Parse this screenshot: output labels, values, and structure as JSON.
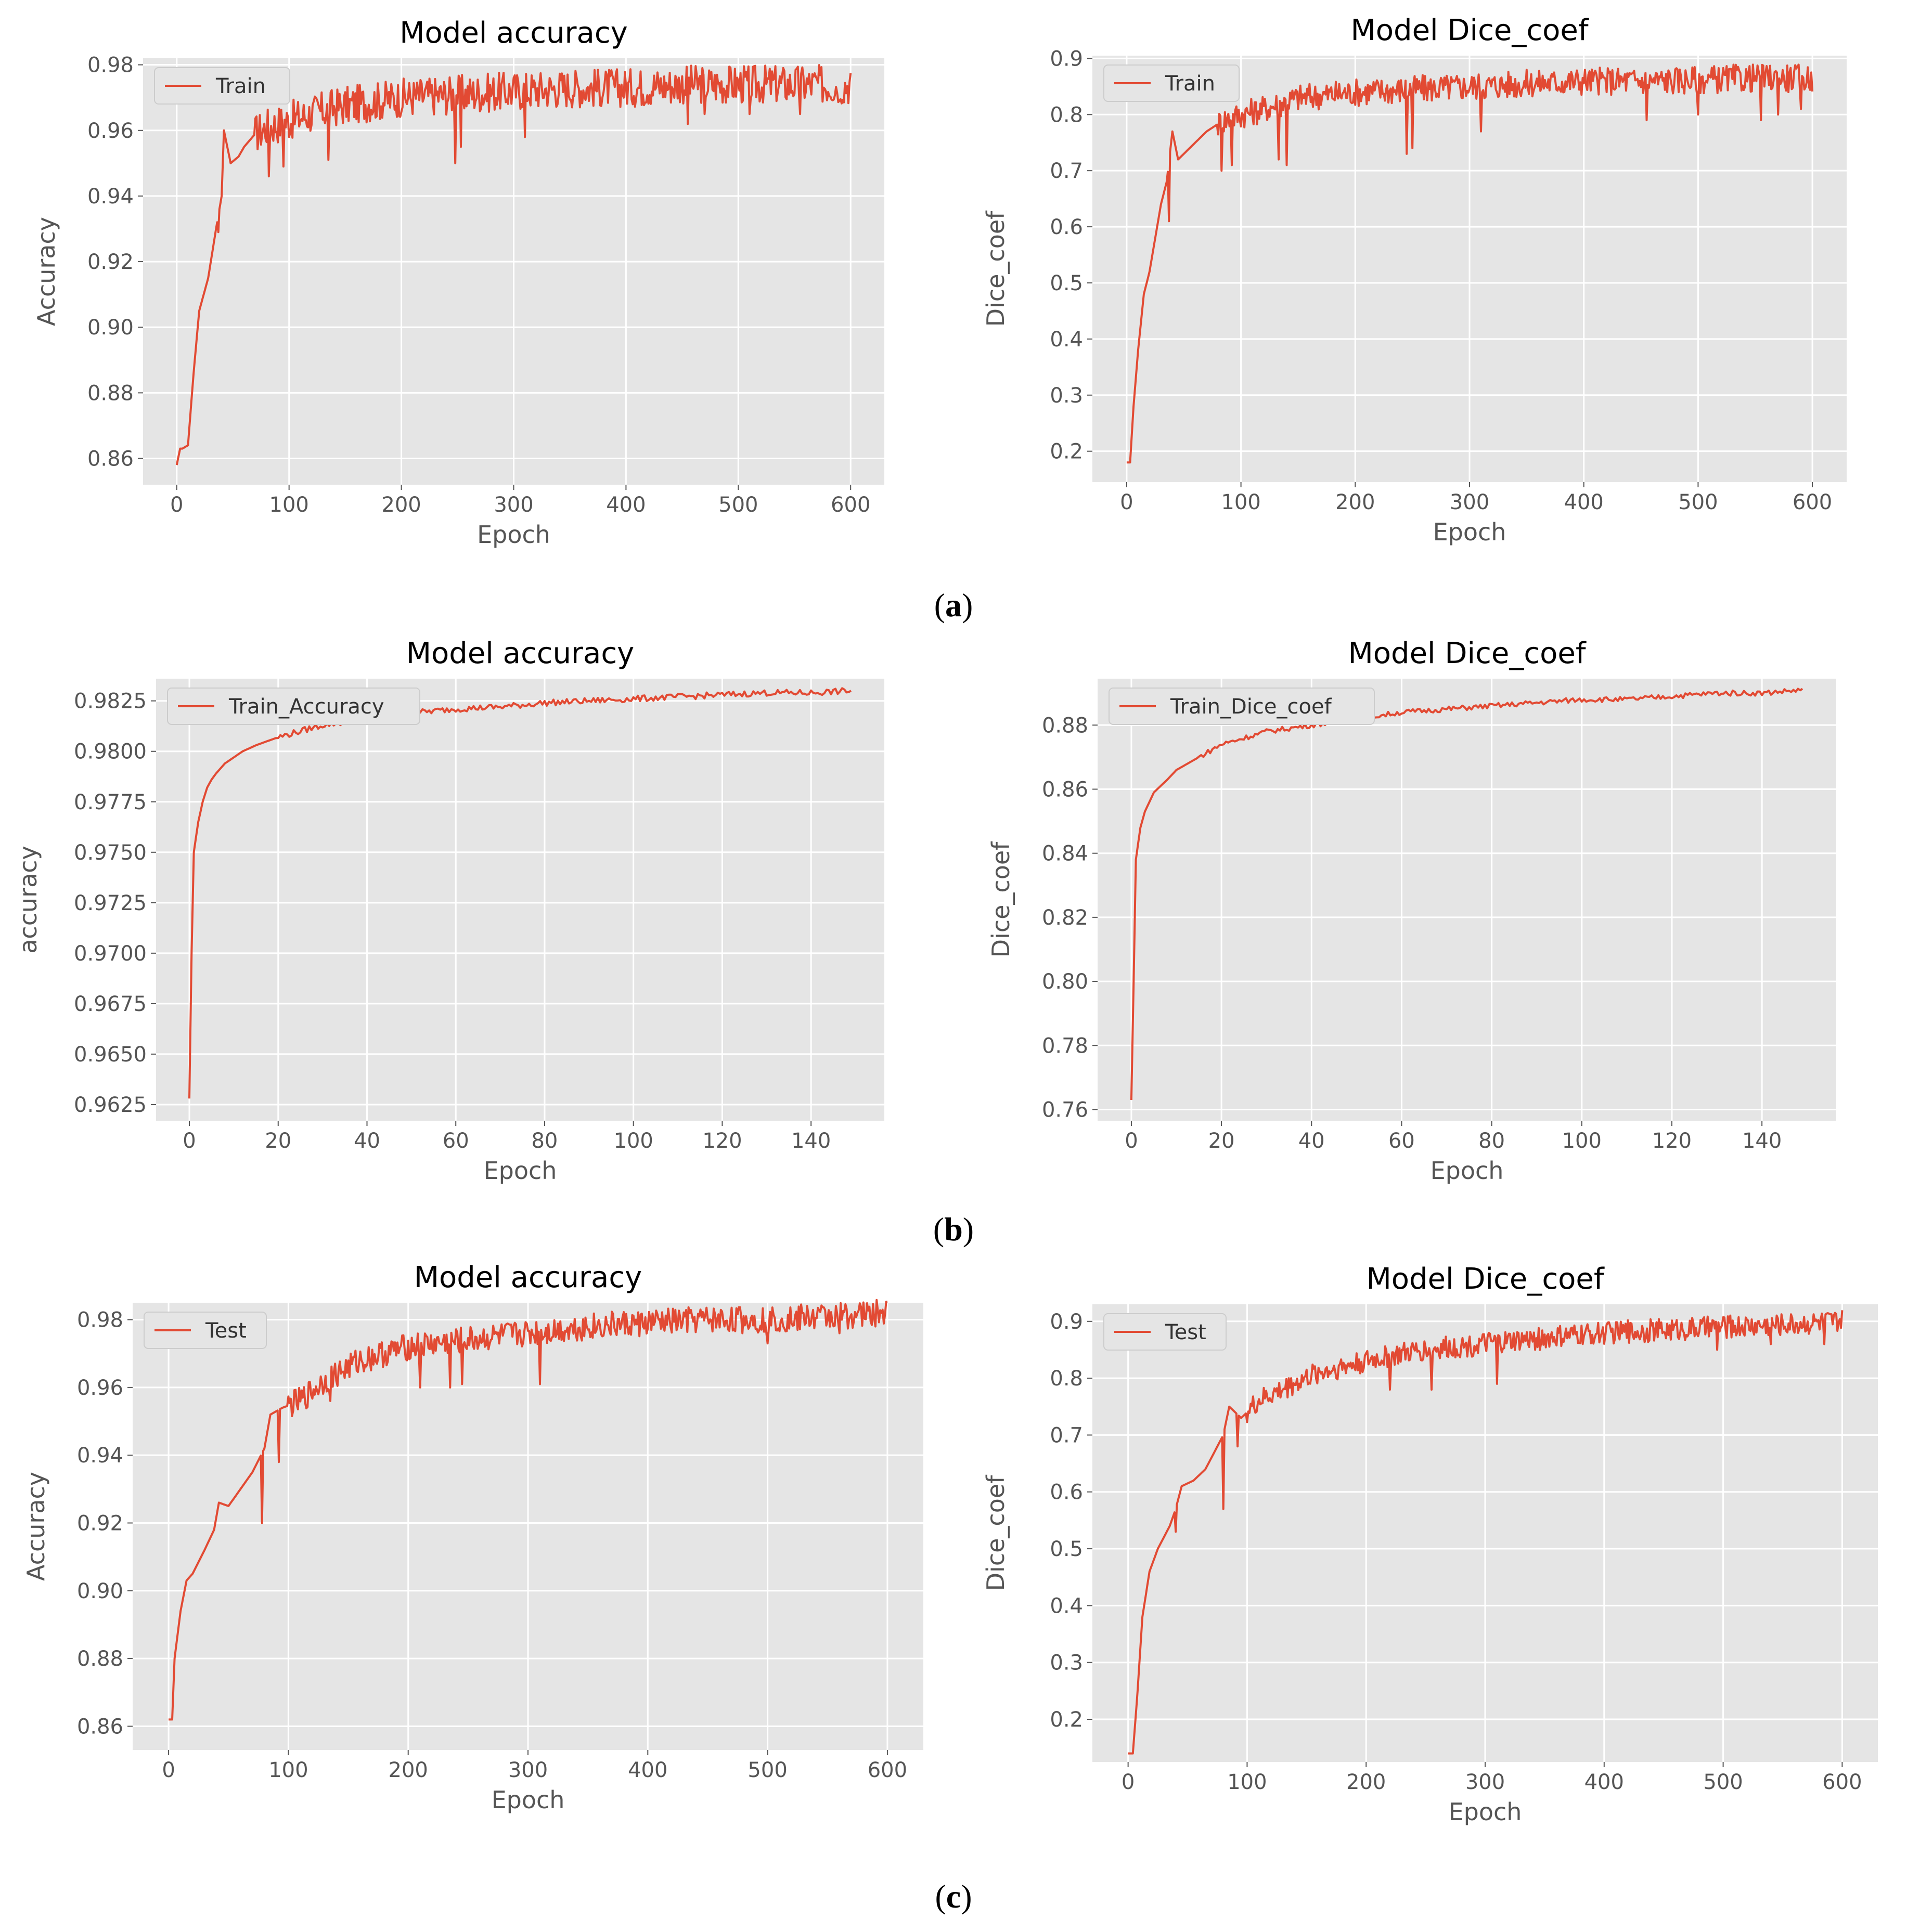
{
  "captions": [
    "a",
    "b",
    "c"
  ],
  "chart_data": [
    {
      "id": "a-acc",
      "type": "line",
      "title": "Model accuracy",
      "xlabel": "Epoch",
      "ylabel": "Accuracy",
      "xlim": [
        -30,
        630
      ],
      "ylim": [
        0.852,
        0.982
      ],
      "xticks": [
        0,
        100,
        200,
        300,
        400,
        500,
        600
      ],
      "yticks": [
        0.86,
        0.88,
        0.9,
        0.92,
        0.94,
        0.96,
        0.98
      ],
      "ytick_labels": [
        "0.86",
        "0.88",
        "0.90",
        "0.92",
        "0.94",
        "0.96",
        "0.98"
      ],
      "legend": "Train",
      "legend_position": "top-left",
      "series": [
        {
          "name": "Train",
          "x": [
            0,
            3,
            5,
            10,
            15,
            20,
            28,
            35,
            40,
            42,
            48,
            55,
            60,
            70,
            80,
            90,
            100,
            120,
            140,
            160,
            180,
            200,
            250,
            300,
            350,
            400,
            450,
            500,
            550,
            600
          ],
          "y": [
            0.858,
            0.863,
            0.863,
            0.864,
            0.886,
            0.905,
            0.915,
            0.93,
            0.94,
            0.96,
            0.95,
            0.952,
            0.955,
            0.959,
            0.961,
            0.962,
            0.963,
            0.965,
            0.967,
            0.968,
            0.969,
            0.97,
            0.971,
            0.972,
            0.973,
            0.973,
            0.974,
            0.974,
            0.974,
            0.974
          ],
          "dips": [
            [
              37,
              0.929
            ],
            [
              82,
              0.946
            ],
            [
              95,
              0.949
            ],
            [
              135,
              0.951
            ],
            [
              248,
              0.95
            ],
            [
              253,
              0.955
            ],
            [
              310,
              0.958
            ],
            [
              455,
              0.962
            ],
            [
              470,
              0.965
            ],
            [
              510,
              0.965
            ],
            [
              555,
              0.965
            ],
            [
              590,
              0.969
            ]
          ],
          "noise_from": 70,
          "noise_amp": 0.006
        }
      ]
    },
    {
      "id": "a-dice",
      "type": "line",
      "title": "Model Dice_coef",
      "xlabel": "Epoch",
      "ylabel": "Dice_coef",
      "xlim": [
        -30,
        630
      ],
      "ylim": [
        0.145,
        0.905
      ],
      "xticks": [
        0,
        100,
        200,
        300,
        400,
        500,
        600
      ],
      "yticks": [
        0.2,
        0.3,
        0.4,
        0.5,
        0.6,
        0.7,
        0.8,
        0.9
      ],
      "ytick_labels": [
        "0.2",
        "0.3",
        "0.4",
        "0.5",
        "0.6",
        "0.7",
        "0.8",
        "0.9"
      ],
      "legend": "Train",
      "legend_position": "top-left",
      "series": [
        {
          "name": "Train",
          "x": [
            0,
            3,
            6,
            10,
            15,
            20,
            25,
            30,
            35,
            40,
            45,
            55,
            70,
            85,
            100,
            120,
            150,
            200,
            250,
            300,
            350,
            400,
            450,
            500,
            550,
            600
          ],
          "y": [
            0.18,
            0.18,
            0.28,
            0.38,
            0.48,
            0.52,
            0.58,
            0.64,
            0.68,
            0.77,
            0.72,
            0.74,
            0.77,
            0.79,
            0.8,
            0.81,
            0.83,
            0.84,
            0.845,
            0.85,
            0.855,
            0.86,
            0.86,
            0.862,
            0.865,
            0.865
          ],
          "dips": [
            [
              37,
              0.61
            ],
            [
              83,
              0.7
            ],
            [
              92,
              0.71
            ],
            [
              133,
              0.72
            ],
            [
              140,
              0.71
            ],
            [
              245,
              0.73
            ],
            [
              250,
              0.74
            ],
            [
              310,
              0.77
            ],
            [
              455,
              0.79
            ],
            [
              500,
              0.8
            ],
            [
              555,
              0.79
            ],
            [
              570,
              0.8
            ],
            [
              590,
              0.81
            ]
          ],
          "noise_from": 80,
          "noise_amp": 0.025
        }
      ]
    },
    {
      "id": "b-acc",
      "type": "line",
      "title": "Model accuracy",
      "xlabel": "Epoch",
      "ylabel": "accuracy",
      "xlim": [
        -7.5,
        156.5
      ],
      "ylim": [
        0.9617,
        0.9836
      ],
      "xticks": [
        0,
        20,
        40,
        60,
        80,
        100,
        120,
        140
      ],
      "yticks": [
        0.9625,
        0.965,
        0.9675,
        0.97,
        0.9725,
        0.975,
        0.9775,
        0.98,
        0.9825
      ],
      "ytick_labels": [
        "0.9625",
        "0.9650",
        "0.9675",
        "0.9700",
        "0.9725",
        "0.9750",
        "0.9775",
        "0.9800",
        "0.9825"
      ],
      "legend": "Train_Accuracy",
      "legend_position": "top-left",
      "series": [
        {
          "name": "Train_Accuracy",
          "x": [
            0,
            0.5,
            1,
            2,
            3,
            4,
            5,
            6,
            8,
            10,
            12,
            15,
            20,
            25,
            30,
            40,
            50,
            60,
            70,
            80,
            90,
            100,
            110,
            120,
            130,
            140,
            149
          ],
          "y": [
            0.9628,
            0.97,
            0.975,
            0.9765,
            0.9775,
            0.9782,
            0.9786,
            0.9789,
            0.9794,
            0.9797,
            0.98,
            0.9803,
            0.9807,
            0.981,
            0.9813,
            0.9816,
            0.9819,
            0.9821,
            0.9822,
            0.9824,
            0.9825,
            0.9826,
            0.9827,
            0.9828,
            0.9829,
            0.9829,
            0.983
          ],
          "dips": [],
          "noise_from": 20,
          "noise_amp": 0.00015
        }
      ]
    },
    {
      "id": "b-dice",
      "type": "line",
      "title": "Model Dice_coef",
      "xlabel": "Epoch",
      "ylabel": "Dice_coef",
      "xlim": [
        -7.5,
        156.5
      ],
      "ylim": [
        0.7565,
        0.8945
      ],
      "xticks": [
        0,
        20,
        40,
        60,
        80,
        100,
        120,
        140
      ],
      "yticks": [
        0.76,
        0.78,
        0.8,
        0.82,
        0.84,
        0.86,
        0.88
      ],
      "ytick_labels": [
        "0.76",
        "0.78",
        "0.80",
        "0.82",
        "0.84",
        "0.86",
        "0.88"
      ],
      "legend": "Train_Dice_coef",
      "legend_position": "top-left",
      "series": [
        {
          "name": "Train_Dice_coef",
          "x": [
            0,
            0.5,
            1,
            2,
            3,
            5,
            8,
            10,
            15,
            20,
            25,
            30,
            40,
            50,
            60,
            70,
            80,
            90,
            100,
            110,
            120,
            130,
            140,
            149
          ],
          "y": [
            0.763,
            0.8,
            0.838,
            0.848,
            0.853,
            0.859,
            0.863,
            0.866,
            0.87,
            0.874,
            0.876,
            0.878,
            0.88,
            0.882,
            0.884,
            0.885,
            0.886,
            0.887,
            0.888,
            0.888,
            0.889,
            0.89,
            0.89,
            0.891
          ],
          "dips": [],
          "noise_from": 15,
          "noise_amp": 0.0008
        }
      ]
    },
    {
      "id": "c-acc",
      "type": "line",
      "title": "Model accuracy",
      "xlabel": "Epoch",
      "ylabel": "Accuracy",
      "xlim": [
        -30,
        630
      ],
      "ylim": [
        0.853,
        0.985
      ],
      "xticks": [
        0,
        100,
        200,
        300,
        400,
        500,
        600
      ],
      "yticks": [
        0.86,
        0.88,
        0.9,
        0.92,
        0.94,
        0.96,
        0.98
      ],
      "ytick_labels": [
        "0.86",
        "0.88",
        "0.90",
        "0.92",
        "0.94",
        "0.96",
        "0.98"
      ],
      "legend": "Test",
      "legend_position": "top-left",
      "series": [
        {
          "name": "Test",
          "x": [
            0,
            3,
            5,
            10,
            15,
            20,
            30,
            38,
            42,
            50,
            60,
            70,
            80,
            85,
            95,
            110,
            130,
            160,
            200,
            250,
            300,
            350,
            400,
            450,
            500,
            550,
            600
          ],
          "y": [
            0.862,
            0.862,
            0.88,
            0.894,
            0.903,
            0.905,
            0.912,
            0.918,
            0.926,
            0.925,
            0.93,
            0.935,
            0.942,
            0.952,
            0.954,
            0.956,
            0.962,
            0.968,
            0.972,
            0.974,
            0.976,
            0.978,
            0.979,
            0.98,
            0.98,
            0.981,
            0.982
          ],
          "dips": [
            [
              78,
              0.92
            ],
            [
              92,
              0.938
            ],
            [
              135,
              0.956
            ],
            [
              210,
              0.96
            ],
            [
              235,
              0.96
            ],
            [
              245,
              0.961
            ],
            [
              310,
              0.961
            ],
            [
              500,
              0.973
            ],
            [
              525,
              0.977
            ],
            [
              560,
              0.976
            ],
            [
              590,
              0.978
            ]
          ],
          "noise_from": 100,
          "noise_amp": 0.004
        }
      ]
    },
    {
      "id": "c-dice",
      "type": "line",
      "title": "Model Dice_coef",
      "xlabel": "Epoch",
      "ylabel": "Dice_coef",
      "xlim": [
        -30,
        630
      ],
      "ylim": [
        0.125,
        0.93
      ],
      "xticks": [
        0,
        100,
        200,
        300,
        400,
        500,
        600
      ],
      "yticks": [
        0.2,
        0.3,
        0.4,
        0.5,
        0.6,
        0.7,
        0.8,
        0.9
      ],
      "ytick_labels": [
        "0.2",
        "0.3",
        "0.4",
        "0.5",
        "0.6",
        "0.7",
        "0.8",
        "0.9"
      ],
      "legend": "Test",
      "legend_position": "top-left",
      "series": [
        {
          "name": "Test",
          "x": [
            0,
            4,
            8,
            12,
            18,
            25,
            35,
            40,
            45,
            55,
            65,
            75,
            80,
            85,
            95,
            110,
            130,
            160,
            200,
            250,
            300,
            350,
            400,
            450,
            500,
            550,
            600
          ],
          "y": [
            0.14,
            0.14,
            0.25,
            0.38,
            0.46,
            0.5,
            0.54,
            0.57,
            0.61,
            0.62,
            0.64,
            0.68,
            0.7,
            0.75,
            0.73,
            0.76,
            0.78,
            0.81,
            0.83,
            0.85,
            0.86,
            0.87,
            0.88,
            0.885,
            0.89,
            0.895,
            0.9
          ],
          "dips": [
            [
              40,
              0.53
            ],
            [
              80,
              0.57
            ],
            [
              92,
              0.68
            ],
            [
              137,
              0.8
            ],
            [
              220,
              0.78
            ],
            [
              255,
              0.78
            ],
            [
              310,
              0.79
            ],
            [
              495,
              0.85
            ],
            [
              540,
              0.86
            ],
            [
              585,
              0.86
            ]
          ],
          "noise_from": 100,
          "noise_amp": 0.02
        }
      ]
    }
  ]
}
